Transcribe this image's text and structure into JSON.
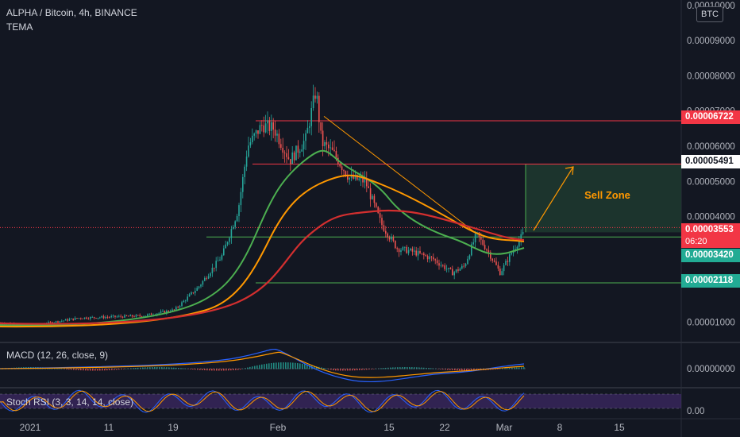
{
  "header": {
    "title": "ALPHA / Bitcoin, 4h, BINANCE",
    "indicator": "TEMA",
    "currency": "BTC"
  },
  "axis": {
    "y_ticks": [
      {
        "label": "0.00010000",
        "value": 0.0001
      },
      {
        "label": "0.00009000",
        "value": 9e-05
      },
      {
        "label": "0.00008000",
        "value": 8e-05
      },
      {
        "label": "0.00007000",
        "value": 7e-05
      },
      {
        "label": "0.00006000",
        "value": 6e-05
      },
      {
        "label": "0.00005000",
        "value": 5e-05
      },
      {
        "label": "0.00004000",
        "value": 4e-05
      },
      {
        "label": "0.00001000",
        "value": 1e-05
      }
    ],
    "x_ticks": [
      {
        "label": "2021",
        "x": 2021.0
      },
      {
        "label": "11",
        "x": 11
      },
      {
        "label": "19",
        "x": 19
      },
      {
        "label": "Feb",
        "x": 32
      },
      {
        "label": "15",
        "x": 46
      },
      {
        "label": "22",
        "x": 53
      },
      {
        "label": "Mar",
        "x": 60
      },
      {
        "label": "8",
        "x": 67
      },
      {
        "label": "15",
        "x": 74
      }
    ]
  },
  "price_labels": {
    "resistance_high": "0.00006722",
    "resistance_mid": "0.00005491",
    "current_price": "0.00003553",
    "countdown": "06:20",
    "support_high": "0.00003420",
    "support_low": "0.00002118"
  },
  "macd": {
    "label": "MACD (12, 26, close, 9)",
    "zero_label": "0.00000000"
  },
  "stoch": {
    "label": "Stoch RSI (3, 3, 14, 14, close)",
    "zero_label": "0.00"
  },
  "annotations": {
    "sell_zone": "Sell Zone"
  },
  "colors": {
    "background": "#131722",
    "up": "#26a69a",
    "down": "#ef5350",
    "resistance": "#f23645",
    "support": "#4caf50",
    "trendline": "#ff9800",
    "ema_green": "#4caf50",
    "ema_orange": "#ff9800",
    "ema_red": "#d32f2f",
    "zone_fill": "#1e3a2f"
  }
}
